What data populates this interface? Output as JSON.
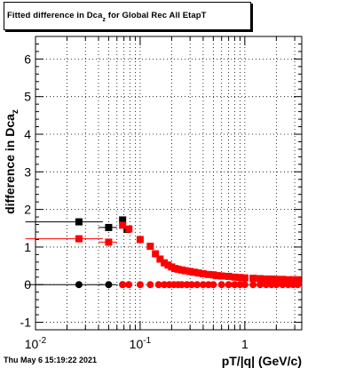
{
  "title": {
    "main": "Fitted difference in Dca",
    "subscript": "z",
    "rest": " for Global Rec All EtapT"
  },
  "footer": "Thu May  6 15:19:22 2021",
  "chart_data": {
    "type": "scatter",
    "title": "Fitted difference in Dca_z for Global Rec All EtapT",
    "xlabel": "pT/|q| (GeV/c)",
    "ylabel": "difference in Dca_z",
    "xscale": "log",
    "xlim": [
      0.01,
      3.5
    ],
    "ylim": [
      -1.2,
      6.6
    ],
    "x_ticks": [
      {
        "value": 0.01,
        "base": "10",
        "exp": "-2"
      },
      {
        "value": 0.1,
        "base": "10",
        "exp": "-1"
      },
      {
        "value": 1,
        "base": "1",
        "exp": ""
      }
    ],
    "y_ticks": [
      -1,
      0,
      1,
      2,
      3,
      4,
      5,
      6
    ],
    "grid": true,
    "series": [
      {
        "color": "#000000",
        "marker": "square",
        "points": [
          [
            0.026,
            1.67,
            0.018,
            0.026
          ],
          [
            0.05,
            1.52,
            0.01,
            0
          ],
          [
            0.068,
            1.72,
            0.004,
            0
          ],
          [
            0.075,
            1.47,
            0.004,
            0
          ]
        ]
      },
      {
        "color": "#000000",
        "marker": "circle",
        "points": [
          [
            0.026,
            0.0,
            0.018,
            0
          ],
          [
            0.05,
            0.0,
            0.01,
            0
          ],
          [
            0.068,
            0.0,
            0.004,
            0
          ]
        ]
      },
      {
        "color": "#ff0000",
        "marker": "square",
        "points": [
          [
            0.026,
            1.22,
            0.018,
            0
          ],
          [
            0.05,
            1.13,
            0.01,
            0
          ],
          [
            0.068,
            1.58,
            0.004,
            0
          ],
          [
            0.078,
            1.48,
            0.004,
            0
          ],
          [
            0.1,
            1.2,
            0.005,
            0
          ],
          [
            0.125,
            1.02,
            0.005,
            0
          ],
          [
            0.14,
            0.82,
            0.005,
            0
          ],
          [
            0.155,
            0.68,
            0.005,
            0
          ],
          [
            0.17,
            0.58,
            0.005,
            0
          ],
          [
            0.185,
            0.52,
            0.005,
            0
          ],
          [
            0.2,
            0.47,
            0.005,
            0
          ],
          [
            0.215,
            0.43,
            0.005,
            0
          ],
          [
            0.23,
            0.41,
            0.005,
            0
          ],
          [
            0.25,
            0.39,
            0.005,
            0
          ],
          [
            0.27,
            0.37,
            0.005,
            0
          ],
          [
            0.3,
            0.35,
            0.005,
            0
          ],
          [
            0.33,
            0.33,
            0.005,
            0
          ],
          [
            0.36,
            0.31,
            0.005,
            0
          ],
          [
            0.4,
            0.29,
            0.005,
            0
          ],
          [
            0.45,
            0.27,
            0.005,
            0
          ],
          [
            0.5,
            0.26,
            0.005,
            0
          ],
          [
            0.55,
            0.24,
            0.005,
            0
          ],
          [
            0.6,
            0.23,
            0.005,
            0
          ],
          [
            0.7,
            0.22,
            0.005,
            0
          ],
          [
            0.8,
            0.2,
            0.005,
            0
          ],
          [
            0.9,
            0.19,
            0.005,
            0
          ],
          [
            1.0,
            0.18,
            0.005,
            0
          ],
          [
            1.2,
            0.17,
            0.005,
            0
          ],
          [
            1.4,
            0.16,
            0.005,
            0
          ],
          [
            1.6,
            0.15,
            0.005,
            0
          ],
          [
            1.8,
            0.15,
            0.005,
            0
          ],
          [
            2.0,
            0.14,
            0.005,
            0
          ],
          [
            2.3,
            0.14,
            0.005,
            0
          ],
          [
            2.6,
            0.13,
            0.005,
            0
          ],
          [
            2.9,
            0.13,
            0.005,
            0
          ],
          [
            3.2,
            0.13,
            0.005,
            0
          ]
        ]
      },
      {
        "color": "#ff0000",
        "marker": "circle",
        "points": [
          [
            0.068,
            0.0,
            0.004,
            0
          ],
          [
            0.078,
            0.0,
            0.004,
            0
          ],
          [
            0.1,
            0.0,
            0.005,
            0
          ],
          [
            0.125,
            0.0,
            0.005,
            0
          ],
          [
            0.15,
            0.0,
            0.005,
            0
          ],
          [
            0.17,
            0.0,
            0.005,
            0
          ],
          [
            0.19,
            0.0,
            0.005,
            0
          ],
          [
            0.21,
            0.0,
            0.005,
            0
          ],
          [
            0.23,
            0.0,
            0.005,
            0
          ],
          [
            0.25,
            0.0,
            0.005,
            0
          ],
          [
            0.28,
            0.0,
            0.005,
            0
          ],
          [
            0.31,
            0.0,
            0.005,
            0
          ],
          [
            0.35,
            0.0,
            0.005,
            0
          ],
          [
            0.4,
            0.0,
            0.005,
            0
          ],
          [
            0.45,
            0.0,
            0.005,
            0
          ],
          [
            0.5,
            0.0,
            0.005,
            0
          ],
          [
            0.6,
            0.0,
            0.005,
            0
          ],
          [
            0.7,
            0.0,
            0.005,
            0
          ],
          [
            0.8,
            0.0,
            0.005,
            0
          ],
          [
            0.9,
            0.0,
            0.005,
            0
          ],
          [
            1.0,
            0.0,
            0.005,
            0
          ],
          [
            1.2,
            0.0,
            0.005,
            0
          ],
          [
            1.4,
            0.0,
            0.005,
            0
          ],
          [
            1.6,
            0.0,
            0.005,
            0
          ],
          [
            1.8,
            0.0,
            0.005,
            0
          ],
          [
            2.0,
            0.0,
            0.005,
            0
          ],
          [
            2.3,
            0.0,
            0.005,
            0
          ],
          [
            2.6,
            0.0,
            0.005,
            0
          ],
          [
            2.9,
            0.0,
            0.005,
            0
          ],
          [
            3.2,
            0.0,
            0.005,
            0
          ]
        ]
      }
    ]
  }
}
